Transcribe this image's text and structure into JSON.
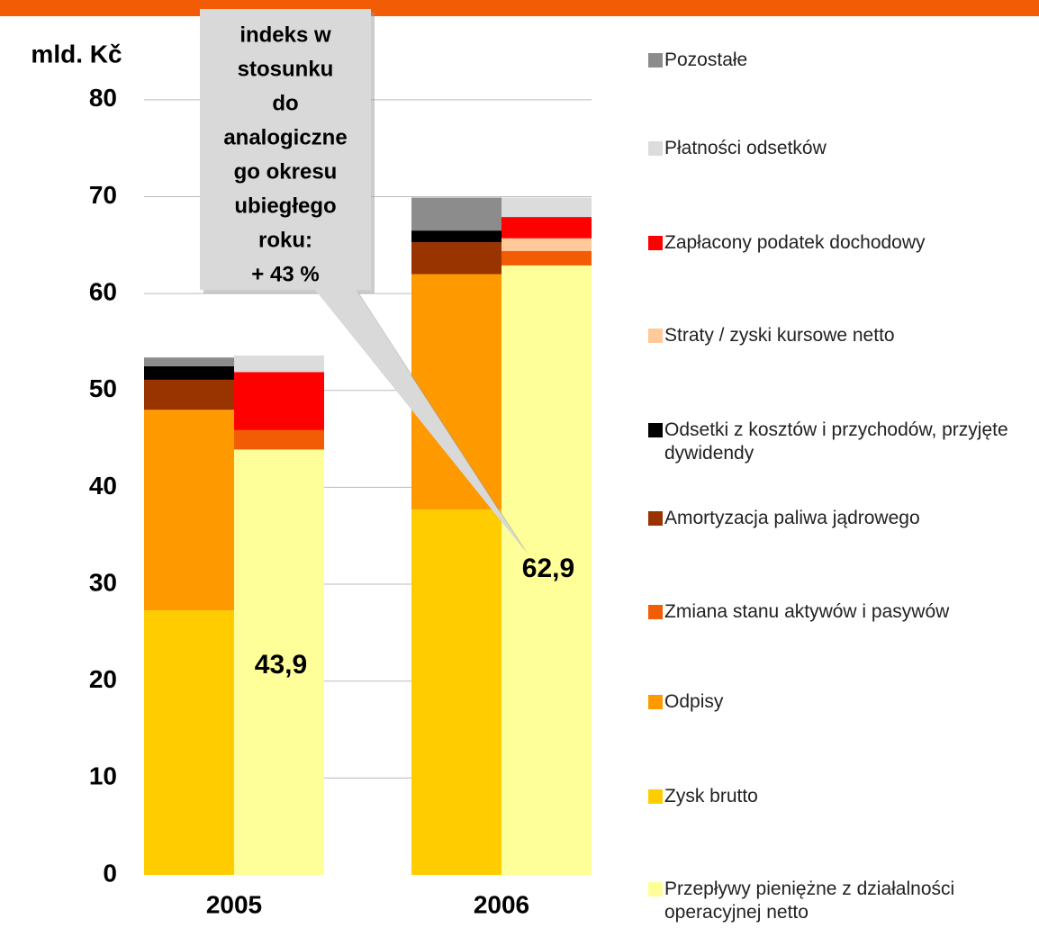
{
  "chart_data": {
    "type": "stacked_bar",
    "axis_title": "mld. Kč",
    "categories": [
      "2005",
      "2006"
    ],
    "ylim": [
      0,
      85
    ],
    "yticks": [
      0,
      10,
      20,
      30,
      40,
      50,
      60,
      70,
      80
    ],
    "grid": true,
    "annotation": [
      "indeks w",
      "stosunku",
      "do",
      "analogiczne",
      "go okresu",
      "ubiegłego",
      "roku:",
      "+ 43 %"
    ],
    "series": [
      {
        "name": "Pozostałe",
        "color": "#8c8c8c",
        "stack": "left",
        "values": [
          0.9,
          3.4
        ]
      },
      {
        "name": "Płatności odsetków",
        "color": "#dcdcdc",
        "stack": "right",
        "values": [
          1.7,
          2.0
        ]
      },
      {
        "name": "Zapłacony podatek dochodowy",
        "color": "#ff0000",
        "stack": "right",
        "values": [
          6.0,
          2.2
        ]
      },
      {
        "name": "Straty / zyski kursowe netto",
        "color": "#ffc99a",
        "stack": "right",
        "values": [
          null,
          1.3
        ]
      },
      {
        "name": "Odsetki z kosztów i przychodów, przyjęte dywidendy",
        "color": "#000000",
        "stack": "left",
        "values": [
          1.4,
          1.2
        ]
      },
      {
        "name": "Amortyzacja paliwa jądrowego",
        "color": "#993300",
        "stack": "left",
        "values": [
          3.1,
          3.3
        ]
      },
      {
        "name": "Zmiana stanu aktywów i pasywów",
        "color": "#f25c05",
        "stack": "right",
        "values": [
          2.0,
          1.5
        ]
      },
      {
        "name": "Odpisy",
        "color": "#ff9900",
        "stack": "left",
        "values": [
          20.7,
          24.3
        ]
      },
      {
        "name": "Zysk brutto",
        "color": "#ffcc00",
        "stack": "left",
        "values": [
          27.3,
          37.7
        ]
      },
      {
        "name": "Przepływy pieniężne z działalności operacyjnej netto",
        "color": "#ffff99",
        "stack": "right",
        "values": [
          43.9,
          62.9
        ],
        "value_labels": [
          "43,9",
          "62,9"
        ]
      }
    ]
  }
}
